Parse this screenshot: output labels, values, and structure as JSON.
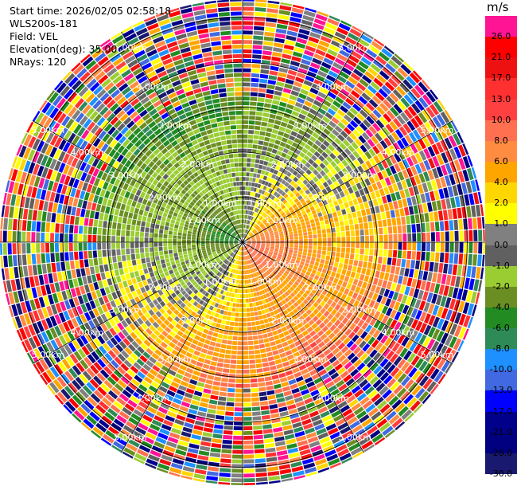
{
  "header": {
    "start_time": "Start time: 2026/02/05 02:58:18",
    "site": "WLS200s-181",
    "field": "Field: VEL",
    "elevation": "Elevation(deg): 35.00",
    "nrays": "NRays: 120"
  },
  "colorbar": {
    "unit": "m/s",
    "ticks": [
      "26.0",
      "21.0",
      "17.0",
      "13.0",
      "10.0",
      "8.0",
      "6.0",
      "4.0",
      "2.0",
      "1.0",
      "0.0",
      "-1.0",
      "-2.0",
      "-4.0",
      "-6.0",
      "-8.0",
      "-10.0",
      "-13.0",
      "-17.0",
      "-21.0",
      "-26.0",
      "-30.0"
    ],
    "colors": [
      "#ff1493",
      "#ff0000",
      "#ee1111",
      "#ff3030",
      "#ff4040",
      "#ff7050",
      "#ff8c40",
      "#ffa500",
      "#ffd700",
      "#ffff00",
      "#808080",
      "#606060",
      "#9acd32",
      "#6b8e23",
      "#228b22",
      "#2e8b57",
      "#1e90ff",
      "#4169e1",
      "#0000ff",
      "#00008b",
      "#000080",
      "#191970"
    ]
  },
  "chart_data": {
    "type": "heatmap",
    "projection": "polar PPI",
    "field": "VEL",
    "units": "m/s",
    "elevation_deg": 35.0,
    "n_rays": 120,
    "range_rings_km": [
      1.0,
      2.0,
      3.0,
      4.0,
      5.0
    ],
    "range_labels": [
      "1.00km",
      "2.00km",
      "3.00km",
      "4.00km",
      "5.00km"
    ],
    "azimuth_spokes_deg": [
      0,
      30,
      60,
      90,
      120,
      150,
      180,
      210,
      240,
      270,
      300,
      330
    ],
    "max_range_km": 5.4,
    "wind_pattern": {
      "approaching_sector_deg": [
        230,
        340
      ],
      "receding_sector_deg": [
        60,
        200
      ],
      "near_field_km": 3.2
    }
  }
}
